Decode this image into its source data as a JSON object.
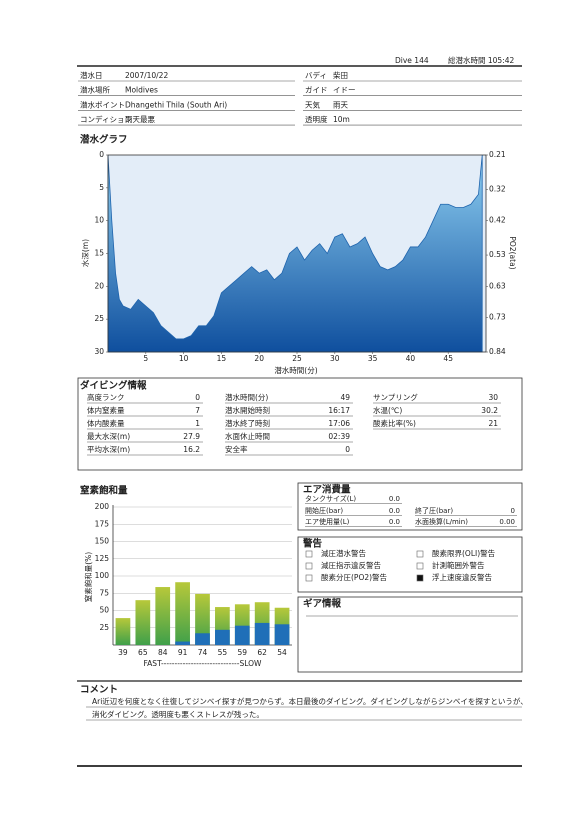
{
  "header": {
    "dive": "Dive 144",
    "total_time": "総潜水時間 105:42"
  },
  "fields": [
    {
      "label": "潜水日",
      "value": "2007/10/22"
    },
    {
      "label": "潜水場所",
      "value": "Moldives"
    },
    {
      "label": "潜水ポイント",
      "value": "Dhangethi Thila (South  Ari)"
    },
    {
      "label": "コンディション",
      "value": "雨天最悪"
    },
    {
      "label": "バディ",
      "value": "柴田"
    },
    {
      "label": "ガイド",
      "value": "イドー"
    },
    {
      "label": "天気",
      "value": "雨天"
    },
    {
      "label": "透明度",
      "value": "10m"
    }
  ],
  "chart_data": [
    {
      "type": "area",
      "title": "潜水グラフ",
      "xlabel": "潜水時間(分)",
      "ylabel": "水深(m)",
      "y2label": "PO2(ata)",
      "color": "#1f64ad",
      "x": [
        0,
        0.5,
        1,
        1.5,
        2,
        3,
        4,
        5,
        6,
        7,
        8,
        9,
        10,
        11,
        12,
        13,
        14,
        15,
        16,
        17,
        18,
        19,
        20,
        21,
        22,
        23,
        24,
        25,
        26,
        27,
        28,
        29,
        30,
        31,
        32,
        33,
        34,
        35,
        36,
        37,
        38,
        39,
        40,
        41,
        42,
        43,
        44,
        45,
        46,
        47,
        48,
        49,
        49.5
      ],
      "values": [
        0,
        10,
        18,
        22,
        23,
        23.5,
        22,
        23,
        24,
        26,
        27,
        28,
        28,
        27.5,
        26,
        26,
        24.5,
        21,
        20,
        19,
        18,
        17,
        18,
        17.5,
        19,
        18,
        15,
        14,
        16,
        14.5,
        13.5,
        15,
        12.5,
        12,
        14,
        13.5,
        12.5,
        15,
        17,
        17.5,
        17,
        16,
        14,
        14,
        12.5,
        10,
        7.5,
        7.5,
        8,
        8,
        7.5,
        6,
        0
      ],
      "xlim": [
        0,
        50
      ],
      "xticks": [
        5,
        10,
        15,
        20,
        25,
        30,
        35,
        40,
        45
      ],
      "ylim": [
        30,
        0
      ],
      "yticks": [
        0,
        5,
        10,
        15,
        20,
        25,
        30
      ],
      "y2lim": [
        0.84,
        0.21
      ],
      "y2ticks": [
        0.21,
        0.32,
        0.42,
        0.53,
        0.63,
        0.73,
        0.84
      ]
    },
    {
      "type": "bar",
      "title": "窒素飽和量",
      "ylabel": "窒素飽和量(%)",
      "x_caption": "FAST-----------------------------SLOW",
      "grid": true,
      "ylim": [
        0,
        200
      ],
      "yticks": [
        25,
        50,
        75,
        100,
        125,
        150,
        175,
        200
      ],
      "series": [
        {
          "color": "#8dbf3a",
          "values": [
            39,
            65,
            84,
            91,
            74,
            55,
            59,
            62,
            54
          ]
        },
        {
          "color": "#1f6fb8",
          "values": [
            0,
            0,
            0,
            5,
            17,
            22,
            28,
            32,
            30
          ]
        }
      ]
    }
  ],
  "dive_info": {
    "title": "ダイビング情報",
    "items": [
      {
        "label": "高度ランク",
        "value": "0"
      },
      {
        "label": "体内窒素量",
        "value": "7"
      },
      {
        "label": "体内酸素量",
        "value": "1"
      },
      {
        "label": "最大水深(m)",
        "value": "27.9"
      },
      {
        "label": "平均水深(m)",
        "value": "16.2"
      },
      {
        "label": "潜水時間(分)",
        "value": "49"
      },
      {
        "label": "潜水開始時刻",
        "value": "16:17"
      },
      {
        "label": "潜水終了時刻",
        "value": "17:06"
      },
      {
        "label": "水面休止時間",
        "value": "02:39"
      },
      {
        "label": "安全率",
        "value": "0"
      },
      {
        "label": "サンプリング",
        "value": "30"
      },
      {
        "label": "水温(℃)",
        "value": "30.2"
      },
      {
        "label": "酸素比率(%)",
        "value": "21"
      }
    ]
  },
  "air": {
    "title": "エア消費量",
    "items": [
      {
        "label": "タンクサイズ(L)",
        "value": "0.0"
      },
      {
        "label": "開始圧(bar)",
        "value": "0.0"
      },
      {
        "label": "終了圧(bar)",
        "value": "0"
      },
      {
        "label": "エア使用量(L)",
        "value": "0.0"
      },
      {
        "label": "水面換算(L/min)",
        "value": "0.00"
      }
    ]
  },
  "warnings": {
    "title": "警告",
    "items": [
      {
        "label": "減圧潜水警告",
        "checked": false
      },
      {
        "label": "酸素限界(OLI)警告",
        "checked": false
      },
      {
        "label": "減圧指示違反警告",
        "checked": false
      },
      {
        "label": "計測範囲外警告",
        "checked": false
      },
      {
        "label": "酸素分圧(PO2)警告",
        "checked": false
      },
      {
        "label": "浮上速度違反警告",
        "checked": true
      }
    ]
  },
  "gear": {
    "title": "ギア情報"
  },
  "comment": {
    "title": "コメント",
    "lines": [
      "Ari近辺を何度となく往復してジンベイ探すが見つからず。本日最後のダイビング。ダイビングしながらジンベイを探すというが、",
      "消化ダイビング。透明度も悪くストレスが残った。"
    ]
  }
}
